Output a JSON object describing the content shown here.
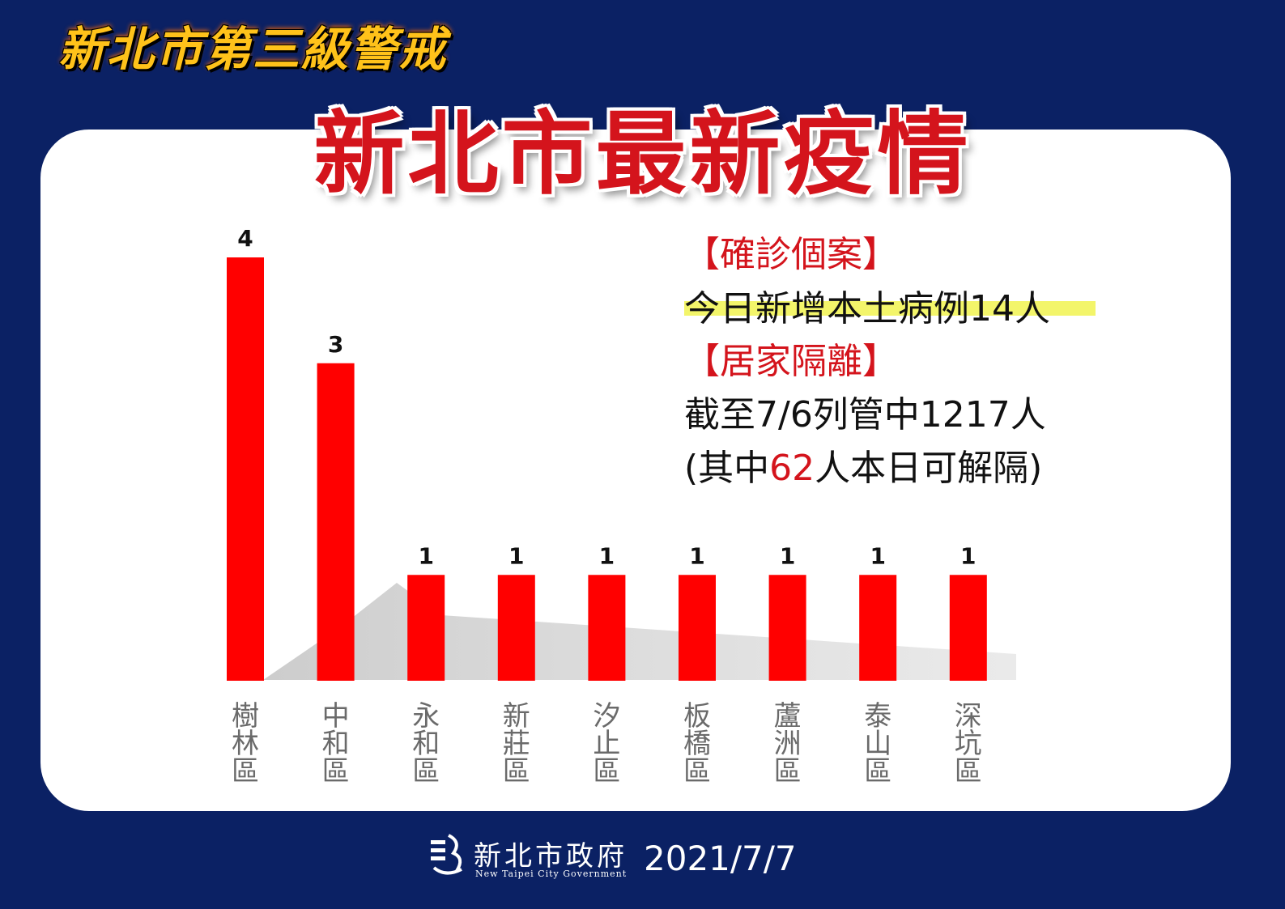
{
  "header": {
    "tagline": "新北市第三級警戒",
    "title": "新北市最新疫情"
  },
  "info": {
    "confirmed_heading": "【確診個案】",
    "confirmed_text": "今日新增本土病例14人",
    "quarantine_heading": "【居家隔離】",
    "quarantine_text": "截至7/6列管中1217人",
    "release_prefix": "(其中",
    "release_number": "62",
    "release_suffix": "人本日可解隔)"
  },
  "footer": {
    "org_name": "新北市政府",
    "org_name_en": "New Taipei City Government",
    "date": "2021/7/7"
  },
  "colors": {
    "background": "#0b2164",
    "bar": "#ff0000",
    "accent_red": "#d4141c",
    "tagline": "#ffc21a",
    "highlight": "#f3f56a"
  },
  "chart_data": {
    "type": "bar",
    "categories": [
      "樹林區",
      "中和區",
      "永和區",
      "新莊區",
      "汐止區",
      "板橋區",
      "蘆洲區",
      "泰山區",
      "深坑區"
    ],
    "values": [
      4,
      3,
      1,
      1,
      1,
      1,
      1,
      1,
      1
    ],
    "title": "",
    "xlabel": "",
    "ylabel": "",
    "ylim": [
      0,
      4
    ],
    "grid": false,
    "legend": "none",
    "data_labels": true,
    "category_label_orientation": "vertical"
  }
}
